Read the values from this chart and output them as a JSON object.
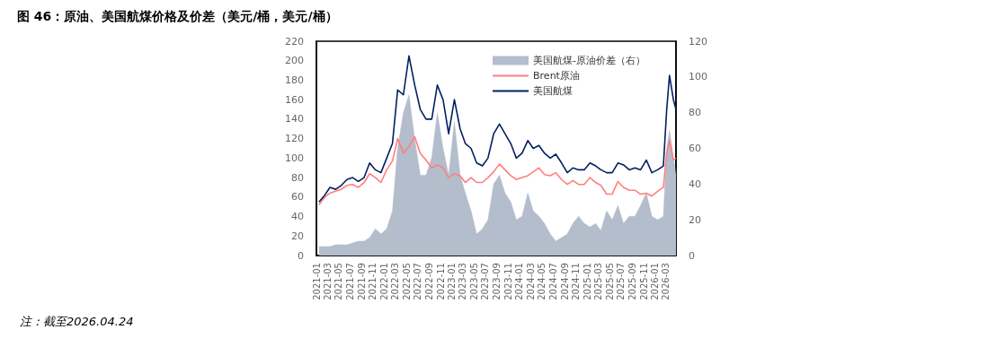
{
  "chart_data": {
    "type": "line",
    "title": "图 46：原油、美国航煤价格及价差（美元/桶，美元/桶）",
    "annotations": [
      "注：截至2026.04.24"
    ],
    "x": [
      "2021-01-15",
      "2021-02-15",
      "2021-03-15",
      "2021-04-15",
      "2021-05-15",
      "2021-06-15",
      "2021-07-15",
      "2021-08-15",
      "2021-09-15",
      "2021-10-15",
      "2021-11-15",
      "2021-12-15",
      "2022-01-15",
      "2022-02-15",
      "2022-03-15",
      "2022-04-15",
      "2022-05-15",
      "2022-06-15",
      "2022-07-15",
      "2022-08-15",
      "2022-09-15",
      "2022-10-15",
      "2022-11-15",
      "2022-12-15",
      "2023-01-15",
      "2023-02-15",
      "2023-03-15",
      "2023-04-15",
      "2023-05-15",
      "2023-06-15",
      "2023-07-15",
      "2023-08-15",
      "2023-09-15",
      "2023-10-15",
      "2023-11-15",
      "2023-12-15",
      "2024-01-15",
      "2024-02-15",
      "2024-03-15",
      "2024-04-15",
      "2024-05-15",
      "2024-06-15",
      "2024-07-15",
      "2024-08-15",
      "2024-09-15",
      "2024-10-15",
      "2024-11-15",
      "2024-12-15",
      "2025-01-15",
      "2025-02-15",
      "2025-03-15",
      "2025-04-15",
      "2025-05-15",
      "2025-06-15",
      "2025-07-15",
      "2025-08-15",
      "2025-09-15",
      "2025-10-15",
      "2025-11-15",
      "2025-12-15",
      "2026-01-15",
      "2026-02-15",
      "2026-03-05",
      "2026-03-20",
      "2026-04-10",
      "2026-04-24"
    ],
    "xlim": [
      "2021-01-01",
      "2026-04-24"
    ],
    "xticks": [
      "2021-01",
      "2021-03",
      "2021-05",
      "2021-07",
      "2021-09",
      "2021-11",
      "2022-01",
      "2022-03",
      "2022-05",
      "2022-07",
      "2022-09",
      "2022-11",
      "2023-01",
      "2023-03",
      "2023-05",
      "2023-07",
      "2023-09",
      "2023-11",
      "2024-01",
      "2024-03",
      "2024-05",
      "2024-07",
      "2024-09",
      "2024-11",
      "2025-01",
      "2025-03",
      "2025-05",
      "2025-07",
      "2025-09",
      "2025-11",
      "2026-01",
      "2026-03"
    ],
    "ylim": [
      0,
      220
    ],
    "yticks": [
      0,
      20,
      40,
      60,
      80,
      100,
      120,
      140,
      160,
      180,
      200,
      220
    ],
    "y2lim": [
      0,
      120
    ],
    "y2ticks": [
      0,
      20,
      40,
      60,
      80,
      100,
      120
    ],
    "grid": false,
    "legend": "top right",
    "marker": "none",
    "series": [
      {
        "name": "美国航煤-原油价差（右）",
        "type": "area",
        "axis": "y2",
        "color": "#b4bdcc",
        "values": [
          5,
          5,
          5,
          6,
          6,
          6,
          7,
          8,
          8,
          10,
          15,
          12,
          15,
          25,
          60,
          80,
          90,
          65,
          45,
          45,
          55,
          80,
          60,
          45,
          75,
          45,
          35,
          25,
          12,
          15,
          20,
          40,
          45,
          35,
          30,
          20,
          22,
          35,
          25,
          22,
          18,
          12,
          8,
          10,
          12,
          18,
          22,
          18,
          16,
          18,
          14,
          25,
          20,
          28,
          18,
          22,
          22,
          28,
          35,
          22,
          20,
          22,
          60,
          70,
          55,
          45
        ]
      },
      {
        "name": "Brent原油",
        "color": "#ff7f7f",
        "values": [
          52,
          60,
          64,
          66,
          68,
          72,
          73,
          70,
          75,
          84,
          80,
          75,
          88,
          97,
          120,
          105,
          112,
          122,
          105,
          98,
          90,
          93,
          90,
          80,
          84,
          82,
          75,
          80,
          75,
          75,
          80,
          86,
          94,
          88,
          82,
          78,
          80,
          82,
          86,
          90,
          83,
          82,
          85,
          78,
          73,
          77,
          73,
          73,
          80,
          75,
          72,
          63,
          63,
          76,
          70,
          67,
          67,
          63,
          64,
          61,
          66,
          70,
          105,
          118,
          98,
          100
        ]
      },
      {
        "name": "美国航煤",
        "color": "#002060",
        "values": [
          55,
          62,
          70,
          68,
          72,
          78,
          80,
          76,
          80,
          95,
          88,
          85,
          100,
          115,
          170,
          165,
          205,
          175,
          150,
          140,
          140,
          175,
          160,
          125,
          160,
          130,
          115,
          110,
          95,
          92,
          100,
          125,
          135,
          125,
          115,
          100,
          105,
          118,
          110,
          113,
          105,
          100,
          104,
          95,
          85,
          90,
          88,
          88,
          95,
          92,
          88,
          85,
          85,
          95,
          93,
          88,
          90,
          88,
          98,
          85,
          88,
          92,
          150,
          185,
          160,
          150
        ]
      }
    ]
  }
}
